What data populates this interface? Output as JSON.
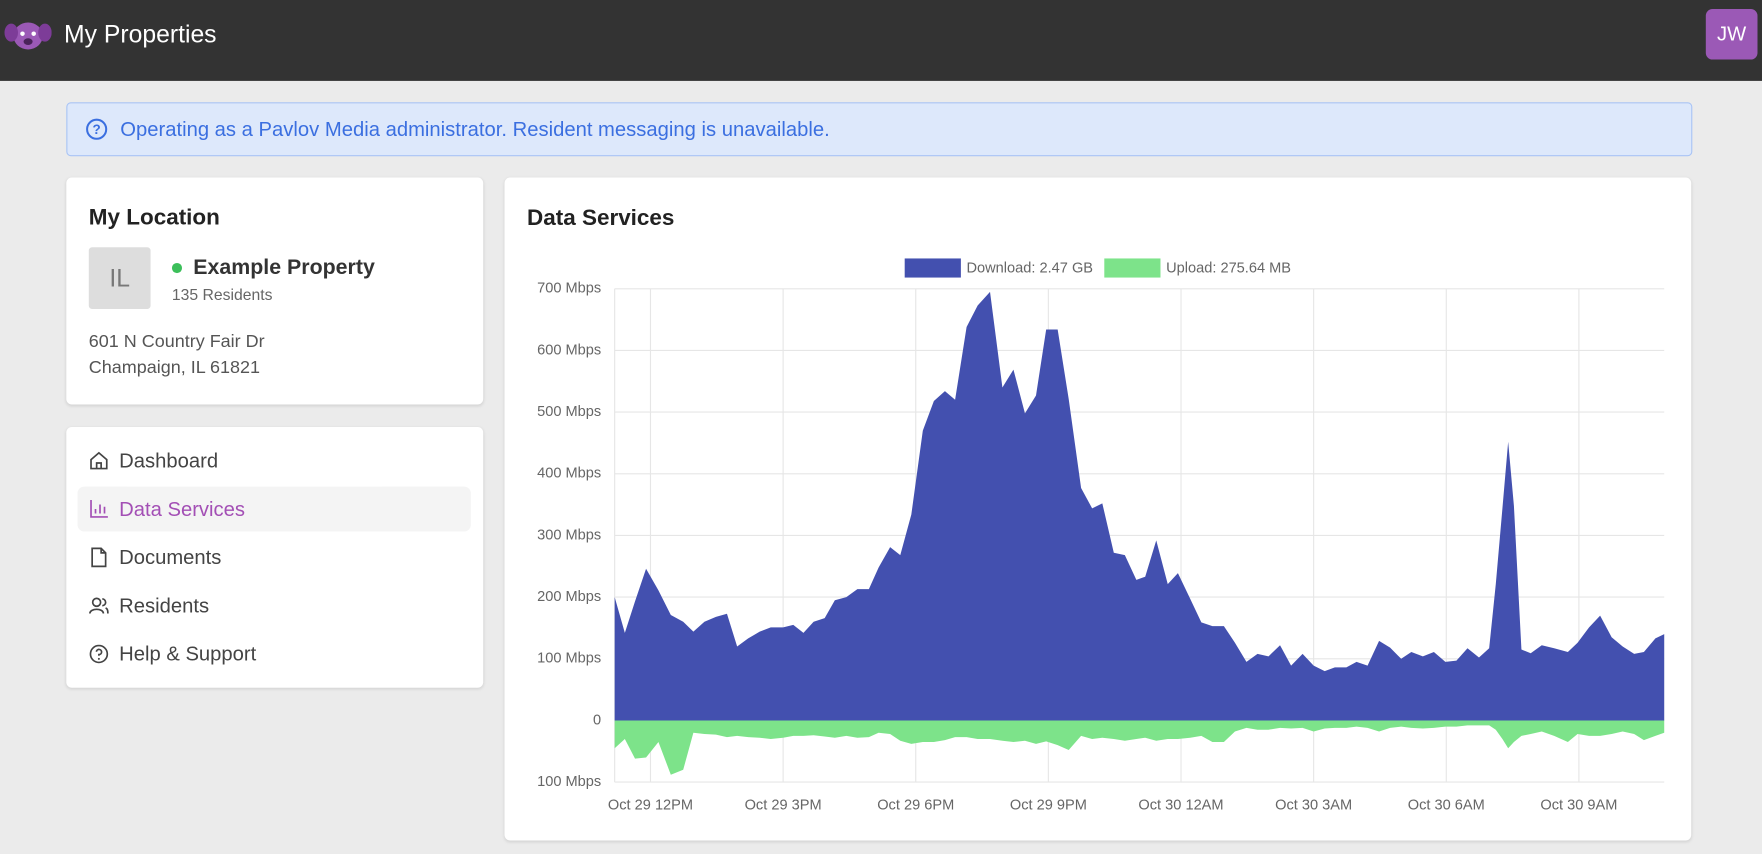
{
  "header": {
    "title": "My Properties",
    "avatar": "JW"
  },
  "banner": {
    "text": "Operating as a Pavlov Media administrator. Resident messaging is unavailable."
  },
  "location": {
    "heading": "My Location",
    "initials": "IL",
    "name": "Example Property",
    "residents": "135 Residents",
    "address": [
      "601 N Country Fair Dr",
      "Champaign, IL 61821"
    ]
  },
  "nav": {
    "items": [
      "Dashboard",
      "Data Services",
      "Documents",
      "Residents",
      "Help & Support"
    ],
    "active": 1
  },
  "chart_data": {
    "type": "area",
    "title": "Data Services",
    "grid": true,
    "legend": "top",
    "x": [
      11.19,
      11.42,
      11.65,
      11.9,
      12.18,
      12.46,
      12.74,
      12.97,
      13.22,
      13.48,
      13.73,
      13.96,
      14.21,
      14.47,
      14.72,
      15.0,
      15.23,
      15.46,
      15.69,
      15.94,
      16.17,
      16.43,
      16.68,
      16.94,
      17.16,
      17.42,
      17.65,
      17.9,
      18.16,
      18.41,
      18.66,
      18.89,
      19.15,
      19.4,
      19.68,
      19.96,
      20.21,
      20.47,
      20.72,
      20.95,
      21.21,
      21.46,
      21.74,
      21.99,
      22.22,
      22.48,
      22.73,
      22.99,
      23.19,
      23.44,
      23.7,
      23.93,
      24.21,
      24.46,
      24.71,
      24.97,
      25.22,
      25.48,
      25.73,
      25.98,
      26.24,
      26.49,
      26.75,
      27.0,
      27.25,
      27.48,
      27.74,
      27.97,
      28.22,
      28.48,
      28.73,
      28.98,
      29.21,
      29.47,
      29.72,
      29.98,
      30.23,
      30.48,
      30.74,
      30.97,
      31.12,
      31.27,
      31.4,
      31.53,
      31.7,
      31.91,
      32.16,
      32.44,
      32.75,
      32.97,
      33.23,
      33.48,
      33.74,
      33.99,
      34.25,
      34.47,
      34.73,
      34.93
    ],
    "series": [
      {
        "name": "Download: 2.47 GB",
        "color": "#4350af",
        "values": [
          200,
          142,
          193,
          246,
          211,
          171,
          160,
          144,
          160,
          168,
          173,
          120,
          133,
          144,
          151,
          151,
          155,
          142,
          160,
          166,
          195,
          200,
          213,
          213,
          248,
          281,
          268,
          334,
          470,
          518,
          534,
          520,
          638,
          673,
          695,
          540,
          569,
          498,
          527,
          634,
          634,
          521,
          377,
          344,
          352,
          272,
          268,
          228,
          233,
          292,
          221,
          239,
          197,
          159,
          153,
          153,
          126,
          95,
          108,
          104,
          122,
          89,
          108,
          89,
          80,
          86,
          86,
          95,
          89,
          129,
          118,
          100,
          111,
          104,
          111,
          95,
          97,
          117,
          102,
          117,
          221,
          344,
          452,
          348,
          115,
          109,
          122,
          117,
          111,
          126,
          151,
          170,
          135,
          120,
          108,
          111,
          133,
          140
        ]
      },
      {
        "name": "Upload: 275.64 MB",
        "color": "#7de38a",
        "values": [
          -45,
          -30,
          -62,
          -60,
          -35,
          -88,
          -80,
          -20,
          -22,
          -23,
          -27,
          -25,
          -27,
          -28,
          -30,
          -28,
          -25,
          -25,
          -24,
          -26,
          -28,
          -25,
          -28,
          -27,
          -20,
          -22,
          -33,
          -38,
          -35,
          -35,
          -32,
          -27,
          -27,
          -30,
          -30,
          -33,
          -35,
          -33,
          -38,
          -34,
          -40,
          -48,
          -25,
          -30,
          -28,
          -30,
          -33,
          -30,
          -28,
          -33,
          -30,
          -30,
          -28,
          -25,
          -35,
          -35,
          -18,
          -12,
          -15,
          -15,
          -12,
          -13,
          -12,
          -18,
          -13,
          -12,
          -12,
          -10,
          -12,
          -18,
          -12,
          -10,
          -12,
          -13,
          -12,
          -10,
          -10,
          -8,
          -8,
          -8,
          -15,
          -30,
          -45,
          -35,
          -25,
          -22,
          -18,
          -25,
          -35,
          -22,
          -25,
          -25,
          -22,
          -18,
          -22,
          -32,
          -25,
          -20
        ]
      }
    ],
    "xlim": [
      11.19,
      34.93
    ],
    "xticks": [
      {
        "value": 12,
        "label": "Oct 29 12PM"
      },
      {
        "value": 15,
        "label": "Oct 29 3PM"
      },
      {
        "value": 18,
        "label": "Oct 29 6PM"
      },
      {
        "value": 21,
        "label": "Oct 29 9PM"
      },
      {
        "value": 24,
        "label": "Oct 30 12AM"
      },
      {
        "value": 27,
        "label": "Oct 30 3AM"
      },
      {
        "value": 30,
        "label": "Oct 30 6AM"
      },
      {
        "value": 33,
        "label": "Oct 30 9AM"
      }
    ],
    "ylim": [
      -100,
      700
    ],
    "yticks": [
      {
        "value": 700,
        "label": "700 Mbps"
      },
      {
        "value": 600,
        "label": "600 Mbps"
      },
      {
        "value": 500,
        "label": "500 Mbps"
      },
      {
        "value": 400,
        "label": "400 Mbps"
      },
      {
        "value": 300,
        "label": "300 Mbps"
      },
      {
        "value": 200,
        "label": "200 Mbps"
      },
      {
        "value": 100,
        "label": "100 Mbps"
      },
      0,
      {
        "value": -100,
        "label": "100 Mbps"
      }
    ]
  }
}
